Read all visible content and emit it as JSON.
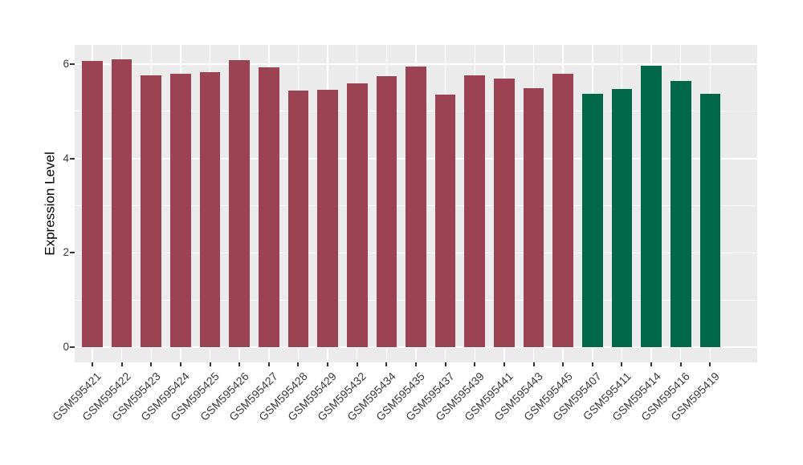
{
  "chart_data": {
    "type": "bar",
    "title": "",
    "xlabel": "",
    "ylabel": "Expression Level",
    "categories": [
      "GSM595421",
      "GSM595422",
      "GSM595423",
      "GSM595424",
      "GSM595425",
      "GSM595426",
      "GSM595427",
      "GSM595428",
      "GSM595429",
      "GSM595432",
      "GSM595434",
      "GSM595435",
      "GSM595437",
      "GSM595439",
      "GSM595441",
      "GSM595443",
      "GSM595445",
      "GSM595407",
      "GSM595411",
      "GSM595414",
      "GSM595416",
      "GSM595419"
    ],
    "values": [
      6.07,
      6.1,
      5.76,
      5.8,
      5.84,
      6.09,
      5.93,
      5.44,
      5.45,
      5.59,
      5.75,
      5.95,
      5.35,
      5.76,
      5.7,
      5.49,
      5.8,
      5.38,
      5.48,
      5.97,
      5.65,
      5.37
    ],
    "bar_colors": [
      "#9B4352",
      "#9B4352",
      "#9B4352",
      "#9B4352",
      "#9B4352",
      "#9B4352",
      "#9B4352",
      "#9B4352",
      "#9B4352",
      "#9B4352",
      "#9B4352",
      "#9B4352",
      "#9B4352",
      "#9B4352",
      "#9B4352",
      "#9B4352",
      "#9B4352",
      "#016849",
      "#016849",
      "#016849",
      "#016849",
      "#016849"
    ],
    "palette": {
      "maroon": "#9B4352",
      "green": "#016849"
    },
    "ylim": [
      -0.32,
      6.41
    ],
    "yticks": [
      0,
      2,
      4,
      6
    ],
    "yticks_minor": [
      1,
      3,
      5
    ],
    "bar_width_fraction": 0.7,
    "grid": true,
    "legend": "none",
    "panel_bg": "#EBEBEB",
    "grid_color": "#FFFFFF",
    "tick_mark_color": "#333333",
    "tick_text_color": "#3A3A3A"
  }
}
